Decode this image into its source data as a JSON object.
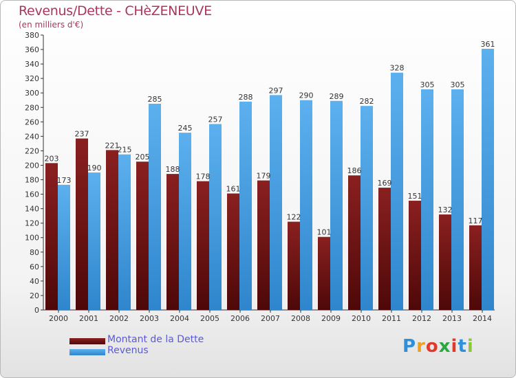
{
  "header": {
    "title": "Revenus/Dette - CHèZENEUVE",
    "subtitle": "(en milliers d'€)"
  },
  "chart_data": {
    "type": "bar",
    "title": "Revenus/Dette - CHèZENEUVE",
    "subtitle": "(en milliers d'€)",
    "categories": [
      "2000",
      "2001",
      "2002",
      "2003",
      "2004",
      "2005",
      "2006",
      "2007",
      "2008",
      "2009",
      "2010",
      "2011",
      "2012",
      "2013",
      "2014"
    ],
    "series": [
      {
        "name": "Montant de la Dette",
        "color": "#7a1616",
        "values": [
          203,
          237,
          221,
          205,
          188,
          178,
          161,
          179,
          122,
          101,
          186,
          169,
          151,
          132,
          117
        ]
      },
      {
        "name": "Revenus",
        "color": "#4a9fe0",
        "values": [
          173,
          190,
          215,
          285,
          245,
          257,
          288,
          297,
          290,
          289,
          282,
          328,
          305,
          305,
          361
        ]
      }
    ],
    "ylim": [
      0,
      380
    ],
    "ytick_step": 20,
    "grid": false,
    "legend_position": "bottom-left"
  },
  "legend": {
    "items": [
      {
        "label": "Montant de la Dette",
        "color": "#7a1616"
      },
      {
        "label": "Revenus",
        "color": "#4a9fe0"
      }
    ]
  },
  "logo": {
    "letters": [
      "P",
      "r",
      "o",
      "x",
      "i",
      "t",
      "i"
    ],
    "colors": [
      "#2f8fd8",
      "#f0a020",
      "#e03a2a",
      "#2aa840",
      "#e03a2a",
      "#2f8fd8",
      "#8cc63f"
    ]
  }
}
